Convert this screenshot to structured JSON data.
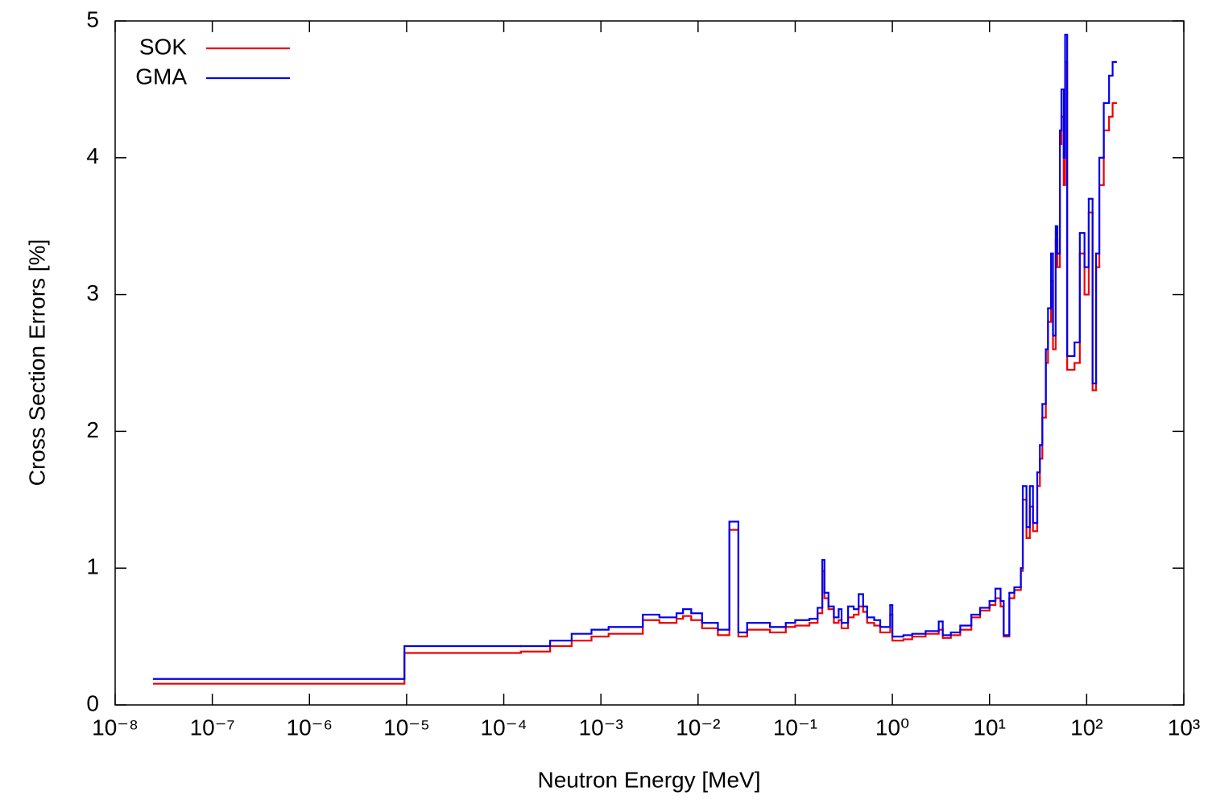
{
  "chart_data": {
    "type": "step",
    "xlabel": "Neutron Energy [MeV]",
    "ylabel": "Cross Section Errors [%]",
    "xscale": "log",
    "legend": "upper left",
    "xlim": [
      1e-08,
      1000
    ],
    "ylim": [
      0,
      5
    ],
    "xticks": [
      {
        "value": 1e-08,
        "label": "10⁻⁸"
      },
      {
        "value": 1e-07,
        "label": "10⁻⁷"
      },
      {
        "value": 1e-06,
        "label": "10⁻⁶"
      },
      {
        "value": 1e-05,
        "label": "10⁻⁵"
      },
      {
        "value": 0.0001,
        "label": "10⁻⁴"
      },
      {
        "value": 0.001,
        "label": "10⁻³"
      },
      {
        "value": 0.01,
        "label": "10⁻²"
      },
      {
        "value": 0.1,
        "label": "10⁻¹"
      },
      {
        "value": 1,
        "label": "10⁰"
      },
      {
        "value": 10,
        "label": "10¹"
      },
      {
        "value": 100,
        "label": "10²"
      },
      {
        "value": 1000,
        "label": "10³"
      }
    ],
    "yticks": [
      0,
      1,
      2,
      3,
      4,
      5
    ],
    "x": [
      2.5e-08,
      9.5e-06,
      0.00015,
      0.0003,
      0.0005,
      0.0008,
      0.0012,
      0.0027,
      0.004,
      0.006,
      0.007,
      0.0085,
      0.011,
      0.016,
      0.021,
      0.026,
      0.032,
      0.055,
      0.08,
      0.1,
      0.14,
      0.17,
      0.19,
      0.2,
      0.22,
      0.25,
      0.28,
      0.3,
      0.35,
      0.4,
      0.45,
      0.5,
      0.55,
      0.65,
      0.75,
      0.95,
      1.0,
      1.3,
      1.6,
      2.2,
      3.0,
      3.3,
      4.0,
      5.0,
      6.5,
      8.0,
      10,
      11.5,
      13,
      14,
      16,
      18,
      21,
      22,
      24,
      26,
      28,
      31,
      33,
      35,
      38,
      40,
      43,
      45,
      48,
      50,
      53,
      55,
      58,
      60,
      63,
      75,
      85,
      95,
      105,
      115,
      125,
      135,
      150,
      170,
      185,
      200
    ],
    "series": [
      {
        "name": "SOK",
        "color": "#ee0000",
        "values": [
          0.155,
          0.38,
          0.39,
          0.43,
          0.47,
          0.5,
          0.52,
          0.62,
          0.6,
          0.63,
          0.65,
          0.62,
          0.56,
          0.51,
          1.28,
          0.5,
          0.55,
          0.53,
          0.57,
          0.58,
          0.6,
          0.67,
          0.98,
          0.78,
          0.7,
          0.6,
          0.62,
          0.56,
          0.64,
          0.66,
          0.72,
          0.68,
          0.6,
          0.58,
          0.53,
          0.66,
          0.47,
          0.48,
          0.5,
          0.52,
          0.55,
          0.49,
          0.51,
          0.55,
          0.64,
          0.69,
          0.73,
          0.78,
          0.72,
          0.5,
          0.78,
          0.84,
          0.98,
          1.5,
          1.22,
          1.45,
          1.27,
          1.6,
          1.8,
          2.1,
          2.5,
          2.8,
          3.1,
          2.6,
          3.4,
          3.2,
          4.1,
          4.3,
          3.8,
          4.7,
          2.45,
          2.5,
          3.3,
          3.0,
          3.6,
          2.3,
          3.2,
          3.8,
          4.2,
          4.3,
          4.4,
          4.4
        ]
      },
      {
        "name": "GMA",
        "color": "#0000ee",
        "values": [
          0.19,
          0.43,
          0.43,
          0.47,
          0.52,
          0.55,
          0.57,
          0.66,
          0.64,
          0.67,
          0.7,
          0.67,
          0.6,
          0.55,
          1.34,
          0.53,
          0.6,
          0.57,
          0.6,
          0.62,
          0.63,
          0.71,
          1.06,
          0.82,
          0.72,
          0.64,
          0.7,
          0.6,
          0.72,
          0.7,
          0.81,
          0.72,
          0.64,
          0.62,
          0.57,
          0.73,
          0.5,
          0.51,
          0.52,
          0.54,
          0.61,
          0.51,
          0.53,
          0.58,
          0.66,
          0.71,
          0.76,
          0.85,
          0.76,
          0.51,
          0.82,
          0.86,
          1.0,
          1.6,
          1.3,
          1.6,
          1.33,
          1.7,
          1.9,
          2.2,
          2.6,
          2.9,
          3.3,
          2.7,
          3.5,
          3.3,
          4.2,
          4.5,
          4.0,
          4.9,
          2.55,
          2.65,
          3.45,
          3.2,
          3.7,
          2.35,
          3.3,
          4.0,
          4.4,
          4.6,
          4.7,
          4.7
        ]
      }
    ]
  }
}
